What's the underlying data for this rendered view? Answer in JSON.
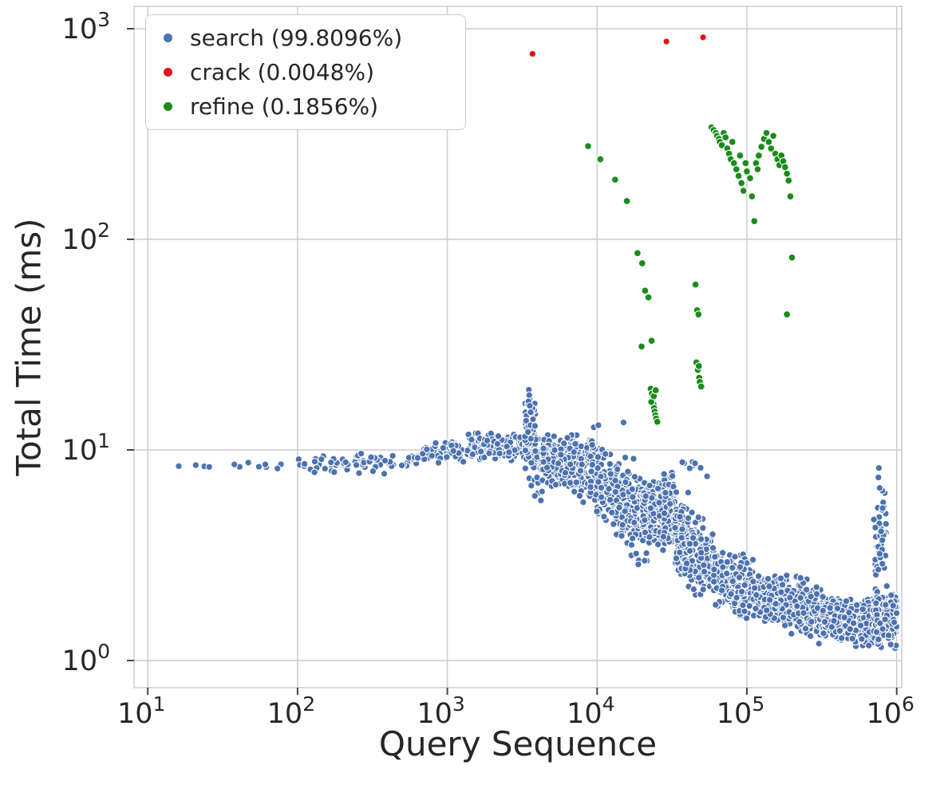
{
  "chart_data": {
    "type": "scatter",
    "title": "",
    "xlabel": "Query Sequence",
    "ylabel": "Total Time (ms)",
    "x_scale": "log",
    "y_scale": "log",
    "xlim": [
      8.1,
      1080000
    ],
    "ylim": [
      0.743,
      1277
    ],
    "x_tick_exponents": [
      1,
      2,
      3,
      4,
      5,
      6
    ],
    "y_tick_exponents": [
      0,
      1,
      2,
      3
    ],
    "tick_label_base": "10",
    "grid": true,
    "grid_color": "#cccccc",
    "tick_color": "#444444",
    "text_color": "#262626",
    "legend": {
      "position": "upper-left",
      "entries": [
        {
          "label": "search (99.8096%)",
          "color": "#4c72b0"
        },
        {
          "label": "crack (0.0048%)",
          "color": "#e41313"
        },
        {
          "label": "refine (0.1856%)",
          "color": "#1a8c1a"
        }
      ]
    },
    "series": [
      {
        "name": "search",
        "label": "search (99.8096%)",
        "color": "#4c72b0",
        "marker_radius": 4.2,
        "seed": 42,
        "y_clamp": [
          1.08,
          20
        ],
        "segment_fields": [
          "x_start",
          "x_end",
          "count",
          "y_center_start",
          "y_center_end",
          "log_spread_start",
          "log_spread_end"
        ],
        "band_segments": [
          [
            15,
            100,
            13,
            8.5,
            8.5,
            0.025,
            0.025
          ],
          [
            100,
            600,
            70,
            8.5,
            8.7,
            0.04,
            0.05
          ],
          [
            600,
            1600,
            90,
            9.2,
            10.6,
            0.05,
            0.06
          ],
          [
            1600,
            3300,
            130,
            10.4,
            10.2,
            0.06,
            0.07
          ],
          [
            3300,
            4300,
            70,
            10.0,
            8.8,
            0.16,
            0.2
          ],
          [
            4300,
            9000,
            400,
            9.2,
            7.9,
            0.1,
            0.16
          ],
          [
            9000,
            20000,
            380,
            7.7,
            4.7,
            0.17,
            0.22
          ],
          [
            20000,
            33000,
            280,
            4.6,
            5.6,
            0.2,
            0.17
          ],
          [
            33000,
            60000,
            280,
            4.2,
            2.7,
            0.2,
            0.18
          ],
          [
            60000,
            110000,
            280,
            2.5,
            2.2,
            0.14,
            0.14
          ],
          [
            110000,
            320000,
            420,
            2.05,
            1.7,
            0.13,
            0.13
          ],
          [
            320000,
            700000,
            380,
            1.6,
            1.5,
            0.11,
            0.11
          ],
          [
            700000,
            1000000,
            220,
            1.55,
            1.65,
            0.13,
            0.13
          ],
          [
            700000,
            860000,
            45,
            3.3,
            4.2,
            0.28,
            0.22
          ],
          [
            30000,
            55000,
            8,
            8.8,
            8.2,
            0.04,
            0.04
          ],
          [
            3300,
            3900,
            25,
            13.0,
            15.0,
            0.12,
            0.1
          ]
        ],
        "extra_points": [
          [
            3500,
            19.3
          ],
          [
            3520,
            18.2
          ],
          [
            3480,
            17.0
          ],
          [
            3550,
            16.2
          ],
          [
            3600,
            15.1
          ],
          [
            760000,
            8.2
          ],
          [
            755000,
            7.4
          ],
          [
            770000,
            6.6
          ],
          [
            15000,
            13.5
          ],
          [
            9500,
            12.8
          ],
          [
            10200,
            13.1
          ]
        ]
      },
      {
        "name": "crack",
        "label": "crack (0.0048%)",
        "color": "#e41313",
        "marker_radius": 4.2,
        "points": [
          [
            3700,
            760
          ],
          [
            29000,
            870
          ],
          [
            51000,
            910
          ]
        ]
      },
      {
        "name": "refine",
        "label": "refine (0.1856%)",
        "color": "#1a8c1a",
        "marker_radius": 4.4,
        "points": [
          [
            8700,
            277
          ],
          [
            10500,
            240
          ],
          [
            13200,
            192
          ],
          [
            15800,
            152
          ],
          [
            18600,
            86
          ],
          [
            20000,
            77
          ],
          [
            20900,
            57
          ],
          [
            22000,
            53
          ],
          [
            19800,
            31
          ],
          [
            23100,
            33
          ],
          [
            22800,
            19.5
          ],
          [
            23200,
            18.5
          ],
          [
            23500,
            17.5
          ],
          [
            23800,
            16.5
          ],
          [
            24000,
            15.8
          ],
          [
            24200,
            15.2
          ],
          [
            24500,
            14.6
          ],
          [
            24800,
            14.1
          ],
          [
            25200,
            13.6
          ],
          [
            23000,
            16.9
          ],
          [
            23900,
            18.0
          ],
          [
            24600,
            19.2
          ],
          [
            45400,
            61
          ],
          [
            46500,
            46
          ],
          [
            47500,
            44
          ],
          [
            46000,
            26
          ],
          [
            47000,
            24
          ],
          [
            48000,
            22
          ],
          [
            48500,
            21
          ],
          [
            49500,
            20
          ],
          [
            47800,
            25
          ],
          [
            58000,
            340
          ],
          [
            60000,
            330
          ],
          [
            62000,
            320
          ],
          [
            63000,
            310
          ],
          [
            65000,
            300
          ],
          [
            66000,
            290
          ],
          [
            68000,
            280
          ],
          [
            70000,
            320
          ],
          [
            72000,
            305
          ],
          [
            74000,
            270
          ],
          [
            76000,
            255
          ],
          [
            78000,
            240
          ],
          [
            80000,
            290
          ],
          [
            82000,
            230
          ],
          [
            85000,
            215
          ],
          [
            88000,
            200
          ],
          [
            90000,
            250
          ],
          [
            92000,
            185
          ],
          [
            95000,
            170
          ],
          [
            98000,
            230
          ],
          [
            100000,
            210
          ],
          [
            105000,
            195
          ],
          [
            108000,
            160
          ],
          [
            112000,
            122
          ],
          [
            115000,
            230
          ],
          [
            118000,
            215
          ],
          [
            120000,
            250
          ],
          [
            125000,
            275
          ],
          [
            130000,
            300
          ],
          [
            135000,
            320
          ],
          [
            140000,
            290
          ],
          [
            145000,
            270
          ],
          [
            150000,
            310
          ],
          [
            155000,
            255
          ],
          [
            160000,
            240
          ],
          [
            165000,
            225
          ],
          [
            170000,
            250
          ],
          [
            175000,
            235
          ],
          [
            180000,
            220
          ],
          [
            185000,
            205
          ],
          [
            190000,
            190
          ],
          [
            195000,
            160
          ],
          [
            200000,
            82
          ],
          [
            185000,
            44
          ]
        ]
      }
    ]
  }
}
